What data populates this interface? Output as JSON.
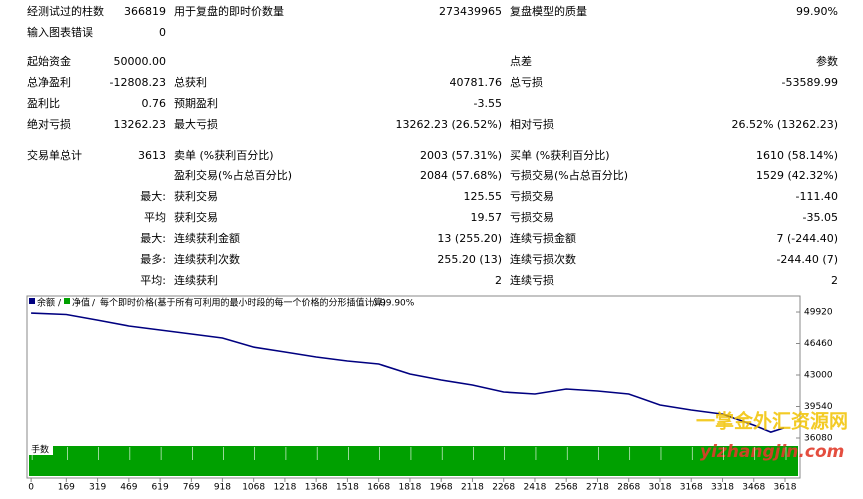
{
  "report": {
    "rows": [
      {
        "label1": "经测试过的柱数",
        "value1": "366819",
        "label2": "用于复盘的即时价数量",
        "value2": "273439965",
        "label3": "复盘模型的质量",
        "value3": "99.90%"
      },
      {
        "label1": "输入图表错误",
        "value1": "0"
      },
      {
        "label1": "起始资金",
        "value1": "50000.00",
        "label3": "点差",
        "value3": "参数"
      },
      {
        "label1": "总净盈利",
        "value1": "-12808.23",
        "label2": "总获利",
        "value2": "40781.76",
        "label3": "总亏损",
        "value3": "-53589.99"
      },
      {
        "label1": "盈利比",
        "value1": "0.76",
        "label2": "预期盈利",
        "value2": "-3.55"
      },
      {
        "label1": "绝对亏损",
        "value1": "13262.23",
        "label2": "最大亏损",
        "value2": "13262.23 (26.52%)",
        "label3": "相对亏损",
        "value3": "26.52% (13262.23)"
      },
      {
        "label1": "交易单总计",
        "value1": "3613",
        "label2": "卖单 (%获利百分比)",
        "value2": "2003 (57.31%)",
        "label3": "买单 (%获利百分比)",
        "value3": "1610 (58.14%)"
      },
      {
        "label2": "盈利交易(%占总百分比)",
        "value2": "2084 (57.68%)",
        "label3": "亏损交易(%占总百分比)",
        "value3": "1529 (42.32%)"
      },
      {
        "prefix": "最大:",
        "label2": "获利交易",
        "value2": "125.55",
        "label3": "亏损交易",
        "value3": "-111.40"
      },
      {
        "prefix": "平均",
        "label2": "获利交易",
        "value2": "19.57",
        "label3": "亏损交易",
        "value3": "-35.05"
      },
      {
        "prefix": "最大:",
        "label2": "连续获利金额",
        "value2": "13 (255.20)",
        "label3": "连续亏损金额",
        "value3": "7 (-244.40)"
      },
      {
        "prefix": "最多:",
        "label2": "连续获利次数",
        "value2": "255.20 (13)",
        "label3": "连续亏损次数",
        "value3": "-244.40 (7)"
      },
      {
        "prefix": "平均:",
        "label2": "连续获利",
        "value2": "2",
        "label3": "连续亏损",
        "value3": "2"
      }
    ]
  },
  "chart_data": {
    "type": "line",
    "equity_label": "净值",
    "model_label": "每个即时价格(基于所有可利用的最小时段的每一个价格的分形插值计算)",
    "quality_label": "99.90%",
    "volume_label": "手数",
    "x": [
      0,
      169,
      319,
      469,
      619,
      769,
      918,
      1068,
      1218,
      1368,
      1518,
      1668,
      1818,
      1968,
      2118,
      2268,
      2418,
      2568,
      2718,
      2868,
      3018,
      3168,
      3318,
      3468,
      3550,
      3613
    ],
    "series": [
      {
        "name": "余额",
        "color": "#000080",
        "values": [
          49800,
          49650,
          49030,
          48380,
          47940,
          47500,
          47060,
          46070,
          45530,
          44980,
          44540,
          44210,
          43110,
          42450,
          41900,
          41130,
          40910,
          41460,
          41240,
          40910,
          39700,
          39150,
          38710,
          37500,
          36730,
          37190
        ]
      }
    ],
    "xlim": [
      -15,
      3690
    ],
    "ylim": [
      35200,
      51460
    ],
    "xticks": [
      0,
      169,
      319,
      469,
      619,
      769,
      918,
      1068,
      1218,
      1368,
      1518,
      1668,
      1818,
      1968,
      2118,
      2268,
      2418,
      2568,
      2718,
      2868,
      3018,
      3168,
      3318,
      3468,
      3618
    ],
    "yticks": [
      36080,
      39540,
      43000,
      46460,
      49920
    ],
    "grid": true
  },
  "watermark": {
    "title": "一掌金外汇资源网",
    "site": "yizhangjin.com"
  }
}
